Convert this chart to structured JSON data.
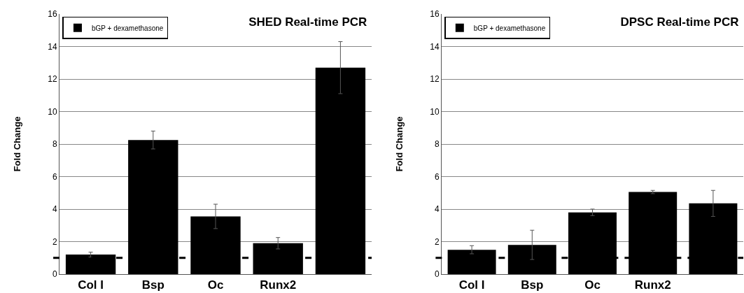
{
  "chart_data": [
    {
      "type": "bar",
      "title": "SHED Real-time PCR",
      "ylabel": "Fold Change",
      "categories": [
        "Col I",
        "Bsp",
        "Oc",
        "Runx2",
        null
      ],
      "series": [
        {
          "name": "bGP + dexamethasone",
          "color": "#000000",
          "values": [
            1.2,
            8.25,
            3.55,
            1.9,
            12.7
          ],
          "errors": [
            0.15,
            0.55,
            0.75,
            0.35,
            1.6
          ]
        }
      ],
      "ylim": [
        0,
        16
      ],
      "yticks": [
        0,
        2,
        4,
        6,
        8,
        10,
        12,
        14,
        16
      ],
      "grid": "y",
      "legend": "top left",
      "ref_lines": [
        {
          "axis": "y",
          "value": 1,
          "color": "#000000",
          "line_style": "dashed"
        }
      ]
    },
    {
      "type": "bar",
      "title": "DPSC Real-time PCR",
      "ylabel": "Fold Change",
      "categories": [
        "Col I",
        "Bsp",
        "Oc",
        "Runx2",
        null
      ],
      "series": [
        {
          "name": "bGP + dexamethasone",
          "color": "#000000",
          "values": [
            1.5,
            1.8,
            3.8,
            5.05,
            4.35
          ],
          "errors": [
            0.25,
            0.9,
            0.2,
            0.1,
            0.8
          ]
        }
      ],
      "ylim": [
        0,
        16
      ],
      "yticks": [
        0,
        2,
        4,
        6,
        8,
        10,
        12,
        14,
        16
      ],
      "grid": "y",
      "legend": "top left",
      "ref_lines": [
        {
          "axis": "y",
          "value": 1,
          "color": "#000000",
          "line_style": "dashed"
        }
      ]
    }
  ]
}
